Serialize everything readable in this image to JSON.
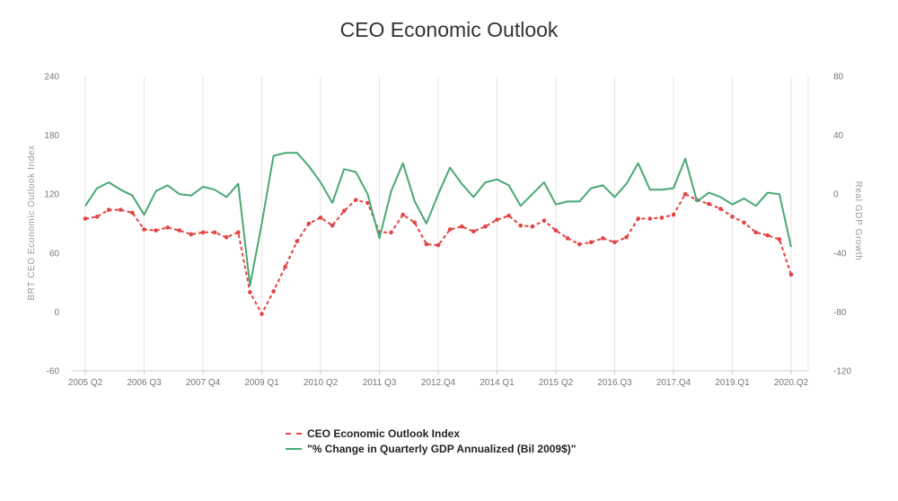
{
  "title": "CEO Economic Outlook",
  "legend": {
    "index_label": "CEO Economic Outlook Index",
    "gdp_label": "\"% Change in Quarterly GDP Annualized (Bil 2009$)\""
  },
  "colors": {
    "index": "#e34444",
    "gdp": "#4aa873",
    "grid": "#e6e6e6"
  },
  "chart_data": {
    "type": "line",
    "title": "CEO Economic Outlook",
    "x": [
      "2005 Q2",
      "2005 Q3",
      "2005 Q4",
      "2006 Q1",
      "2006 Q2",
      "2006 Q3",
      "2006 Q4",
      "2007 Q1",
      "2007 Q2",
      "2007 Q3",
      "2007 Q4",
      "2008 Q1",
      "2008 Q2",
      "2008 Q3",
      "2008 Q4",
      "2009 Q1",
      "2009 Q2",
      "2009 Q3",
      "2009 Q4",
      "2010 Q1",
      "2010 Q2",
      "2010 Q3",
      "2010 Q4",
      "2011 Q1",
      "2011 Q2",
      "2011 Q3",
      "2011 Q4",
      "2012 Q1",
      "2012 Q2",
      "2012 Q3",
      "2012 Q4",
      "2013 Q1",
      "2013 Q2",
      "2013 Q3",
      "2013 Q4",
      "2014 Q1",
      "2014 Q2",
      "2014 Q3",
      "2014 Q4",
      "2015 Q1",
      "2015 Q2",
      "2015 Q3",
      "2015 Q4",
      "2016 Q1",
      "2016 Q2",
      "2016 Q3",
      "2016 Q4",
      "2017 Q1",
      "2017 Q2",
      "2017 Q3",
      "2017 Q4",
      "2018 Q1",
      "2018 Q2",
      "2018 Q3",
      "2018 Q4",
      "2019 Q1",
      "2019 Q2",
      "2019 Q3",
      "2019 Q4",
      "2020 Q1",
      "2020 Q2"
    ],
    "x_tick_labels": [
      "2005 Q2",
      "2006 Q3",
      "2007 Q4",
      "2009 Q1",
      "2010 Q2",
      "2011 Q3",
      "2012.Q4",
      "2014 Q1",
      "2015 Q2",
      "2016.Q3",
      "2017.Q4",
      "2019.Q1",
      "2020.Q2"
    ],
    "x_tick_every": 5,
    "series": [
      {
        "name": "CEO Economic Outlook Index",
        "axis": "left",
        "style": "dashed-markers",
        "values": [
          95,
          97,
          104,
          104,
          101,
          84,
          83,
          86,
          83,
          79,
          81,
          81,
          76,
          81,
          20,
          -2,
          21,
          46,
          72,
          90,
          96,
          88,
          103,
          114,
          111,
          81,
          81,
          99,
          91,
          69,
          68,
          84,
          87,
          82,
          87,
          94,
          98,
          88,
          87,
          93,
          83,
          75,
          69,
          71,
          75,
          71,
          76,
          95,
          95,
          96,
          99,
          120,
          114,
          110,
          105,
          97,
          91,
          81,
          78,
          74,
          38
        ]
      },
      {
        "name": "\"% Change in Quarterly GDP Annualized (Bil 2009$)\"",
        "axis": "right",
        "style": "solid",
        "values": [
          -8,
          4,
          8,
          3,
          -1,
          -14,
          2,
          6,
          0,
          -1,
          5,
          3,
          -2,
          7,
          -62,
          -20,
          26,
          28,
          28,
          19,
          8,
          -6,
          17,
          15,
          0,
          -30,
          2,
          21,
          -5,
          -20,
          0,
          18,
          7,
          -2,
          8,
          10,
          6,
          -8,
          0,
          8,
          -7,
          -5,
          -5,
          4,
          6,
          -2,
          7,
          21,
          3,
          3,
          4,
          24,
          -5,
          1,
          -2,
          -7,
          -3,
          -8,
          1,
          0,
          -36
        ]
      }
    ],
    "ylabel": "BRT CEO Economic Outlook Index",
    "ylabel_right": "Real GDP Growth",
    "ylim": [
      -60,
      240
    ],
    "ylim_right": [
      -120,
      80
    ],
    "yticks": [
      -60,
      0,
      60,
      120,
      180,
      240
    ],
    "yticks_right": [
      -120,
      -80,
      -40,
      0,
      40,
      80
    ],
    "grid": "vertical",
    "legend_position": "bottom-center"
  }
}
